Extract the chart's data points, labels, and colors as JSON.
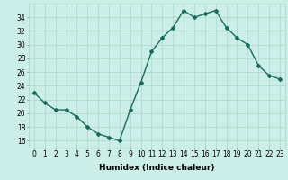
{
  "x": [
    0,
    1,
    2,
    3,
    4,
    5,
    6,
    7,
    8,
    9,
    10,
    11,
    12,
    13,
    14,
    15,
    16,
    17,
    18,
    19,
    20,
    21,
    22,
    23
  ],
  "y": [
    23,
    21.5,
    20.5,
    20.5,
    19.5,
    18,
    17,
    16.5,
    16,
    20.5,
    24.5,
    29,
    31,
    32.5,
    35,
    34,
    34.5,
    35,
    32.5,
    31,
    30,
    27,
    25.5,
    25
  ],
  "line_color": "#1a6b5a",
  "marker": "D",
  "marker_size": 2,
  "bg_color": "#cceee8",
  "grid_color": "#aad6cc",
  "xlabel": "Humidex (Indice chaleur)",
  "xlim": [
    -0.5,
    23.5
  ],
  "ylim": [
    15,
    36
  ],
  "yticks": [
    16,
    18,
    20,
    22,
    24,
    26,
    28,
    30,
    32,
    34
  ],
  "xticks": [
    0,
    1,
    2,
    3,
    4,
    5,
    6,
    7,
    8,
    9,
    10,
    11,
    12,
    13,
    14,
    15,
    16,
    17,
    18,
    19,
    20,
    21,
    22,
    23
  ],
  "xlabel_fontsize": 6.5,
  "tick_fontsize": 5.5,
  "line_width": 1.0
}
